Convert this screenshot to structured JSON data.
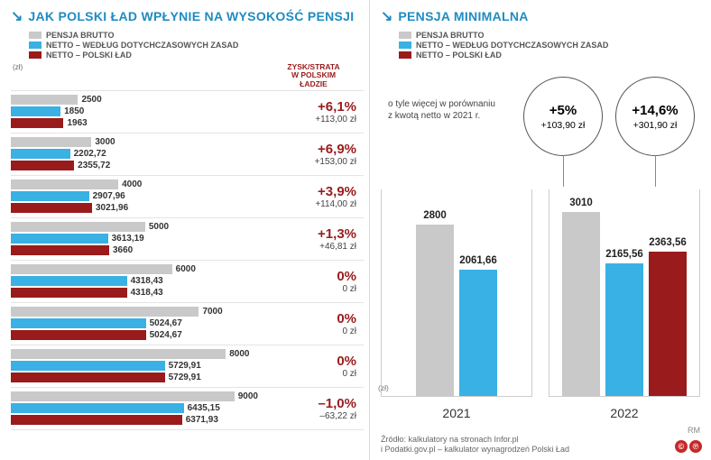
{
  "colors": {
    "brutto": "#c9c9c9",
    "netto_old": "#39b1e5",
    "netto_new": "#9a1b1b",
    "positive": "#9a1b1b",
    "neutral": "#9a1b1b",
    "negative": "#9a1b1b",
    "title": "#1e8bc3"
  },
  "left": {
    "title": "JAK POLSKI ŁAD WPŁYNIE NA WYSOKOŚĆ PENSJI",
    "legend": {
      "brutto": "PENSJA BRUTTO",
      "netto_old": "NETTO – WEDŁUG DOTYCHCZASOWYCH ZASAD",
      "netto_new": "NETTO – POLSKI ŁAD"
    },
    "axis_label": "(zł)",
    "zysk_header_l1": "ZYSK/STRATA",
    "zysk_header_l2": "W POLSKIM",
    "zysk_header_l3": "ŁADZIE",
    "max_value": 9000,
    "rows": [
      {
        "brutto": 2500,
        "netto_old": "1850",
        "netto_new": "1963",
        "pct": "+6,1%",
        "amt": "+113,00 zł",
        "pct_color": "#9a1b1b"
      },
      {
        "brutto": 3000,
        "netto_old": "2202,72",
        "netto_new": "2355,72",
        "pct": "+6,9%",
        "amt": "+153,00 zł",
        "pct_color": "#9a1b1b"
      },
      {
        "brutto": 4000,
        "netto_old": "2907,96",
        "netto_new": "3021,96",
        "pct": "+3,9%",
        "amt": "+114,00 zł",
        "pct_color": "#9a1b1b"
      },
      {
        "brutto": 5000,
        "netto_old": "3613,19",
        "netto_new": "3660",
        "pct": "+1,3%",
        "amt": "+46,81 zł",
        "pct_color": "#9a1b1b"
      },
      {
        "brutto": 6000,
        "netto_old": "4318,43",
        "netto_new": "4318,43",
        "pct": "0%",
        "amt": "0 zł",
        "pct_color": "#9a1b1b"
      },
      {
        "brutto": 7000,
        "netto_old": "5024,67",
        "netto_new": "5024,67",
        "pct": "0%",
        "amt": "0 zł",
        "pct_color": "#9a1b1b"
      },
      {
        "brutto": 8000,
        "netto_old": "5729,91",
        "netto_new": "5729,91",
        "pct": "0%",
        "amt": "0 zł",
        "pct_color": "#9a1b1b"
      },
      {
        "brutto": 9000,
        "netto_old": "6435,15",
        "netto_new": "6371,93",
        "pct": "–1,0%",
        "amt": "–63,22 zł",
        "pct_color": "#9a1b1b"
      }
    ]
  },
  "right": {
    "title": "PENSJA MINIMALNA",
    "legend": {
      "brutto": "PENSJA BRUTTO",
      "netto_old": "NETTO – WEDŁUG DOTYCHCZASOWYCH ZASAD",
      "netto_new": "NETTO – POLSKI ŁAD"
    },
    "note": "o tyle więcej w porównaniu z kwotą netto w 2021 r.",
    "bubbles": [
      {
        "pct": "+5%",
        "amt": "+103,90 zł"
      },
      {
        "pct": "+14,6%",
        "amt": "+301,90 zł"
      }
    ],
    "axis_label": "(zł)",
    "max_value": 3100,
    "years": [
      {
        "year": "2021",
        "bars": [
          {
            "key": "brutto",
            "value": 2800,
            "label": "2800"
          },
          {
            "key": "netto_old",
            "value": 2061.66,
            "label": "2061,66"
          }
        ]
      },
      {
        "year": "2022",
        "bars": [
          {
            "key": "brutto",
            "value": 3010,
            "label": "3010"
          },
          {
            "key": "netto_old",
            "value": 2165.56,
            "label": "2165,56"
          },
          {
            "key": "netto_new",
            "value": 2363.56,
            "label": "2363,56"
          }
        ]
      }
    ],
    "source_l1": "Źródło: kalkulatory na stronach Infor.pl",
    "source_l2": "i Podatki.gov.pl – kalkulator wynagrodzeń Polski Ład",
    "sig": "RM",
    "cp_c": "©",
    "cp_p": "℗"
  }
}
